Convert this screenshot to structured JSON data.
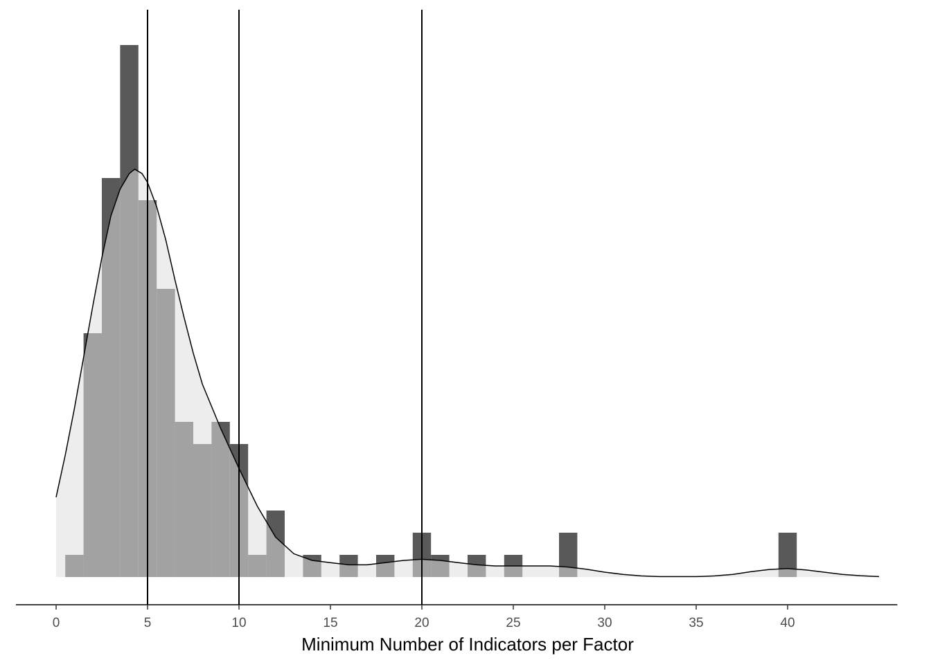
{
  "chart_data": {
    "type": "histogram",
    "xlabel": "Minimum Number of Indicators per Factor",
    "ylabel": "",
    "title": "",
    "xlim": [
      -2.2,
      46
    ],
    "ylim": [
      0,
      24.5
    ],
    "x_ticks": [
      0,
      5,
      10,
      15,
      20,
      25,
      30,
      35,
      40
    ],
    "grid": false,
    "bin_width": 1,
    "series": [
      {
        "role": "histogram",
        "color": "#595959",
        "bins": [
          {
            "x": 1,
            "count": 1
          },
          {
            "x": 2,
            "count": 11
          },
          {
            "x": 3,
            "count": 18
          },
          {
            "x": 4,
            "count": 24
          },
          {
            "x": 5,
            "count": 17
          },
          {
            "x": 6,
            "count": 13
          },
          {
            "x": 7,
            "count": 7
          },
          {
            "x": 8,
            "count": 6
          },
          {
            "x": 9,
            "count": 7
          },
          {
            "x": 10,
            "count": 6
          },
          {
            "x": 11,
            "count": 1
          },
          {
            "x": 12,
            "count": 3
          },
          {
            "x": 14,
            "count": 1
          },
          {
            "x": 16,
            "count": 1
          },
          {
            "x": 18,
            "count": 1
          },
          {
            "x": 20,
            "count": 2
          },
          {
            "x": 21,
            "count": 1
          },
          {
            "x": 23,
            "count": 1
          },
          {
            "x": 25,
            "count": 1
          },
          {
            "x": 28,
            "count": 2
          },
          {
            "x": 40,
            "count": 2
          }
        ]
      },
      {
        "role": "density",
        "fill": "#dedede",
        "stroke": "#000000",
        "points": [
          [
            0,
            3.6
          ],
          [
            0.5,
            5.5
          ],
          [
            1,
            7.6
          ],
          [
            1.5,
            9.9
          ],
          [
            2,
            12.2
          ],
          [
            2.5,
            14.4
          ],
          [
            3,
            16.3
          ],
          [
            3.5,
            17.5
          ],
          [
            4,
            18.2
          ],
          [
            4.3,
            18.4
          ],
          [
            4.7,
            18.2
          ],
          [
            5,
            17.8
          ],
          [
            5.5,
            16.7
          ],
          [
            6,
            15.2
          ],
          [
            6.5,
            13.4
          ],
          [
            7,
            11.7
          ],
          [
            7.5,
            10.1
          ],
          [
            8,
            8.7
          ],
          [
            9,
            6.7
          ],
          [
            10,
            4.9
          ],
          [
            11,
            3.2
          ],
          [
            12,
            1.8
          ],
          [
            13,
            1.05
          ],
          [
            14,
            0.75
          ],
          [
            15,
            0.65
          ],
          [
            16,
            0.55
          ],
          [
            17,
            0.55
          ],
          [
            18,
            0.65
          ],
          [
            19,
            0.75
          ],
          [
            20,
            0.8
          ],
          [
            21,
            0.75
          ],
          [
            22,
            0.65
          ],
          [
            23,
            0.55
          ],
          [
            24,
            0.5
          ],
          [
            25,
            0.5
          ],
          [
            26,
            0.5
          ],
          [
            27,
            0.5
          ],
          [
            28,
            0.45
          ],
          [
            29,
            0.35
          ],
          [
            30,
            0.22
          ],
          [
            31,
            0.12
          ],
          [
            32,
            0.05
          ],
          [
            33,
            0.02
          ],
          [
            34,
            0.02
          ],
          [
            35,
            0.02
          ],
          [
            36,
            0.05
          ],
          [
            37,
            0.12
          ],
          [
            38,
            0.24
          ],
          [
            39,
            0.34
          ],
          [
            40,
            0.38
          ],
          [
            41,
            0.32
          ],
          [
            42,
            0.22
          ],
          [
            43,
            0.12
          ],
          [
            44,
            0.06
          ],
          [
            45,
            0.02
          ]
        ]
      }
    ],
    "vlines": [
      5,
      10,
      20
    ]
  }
}
